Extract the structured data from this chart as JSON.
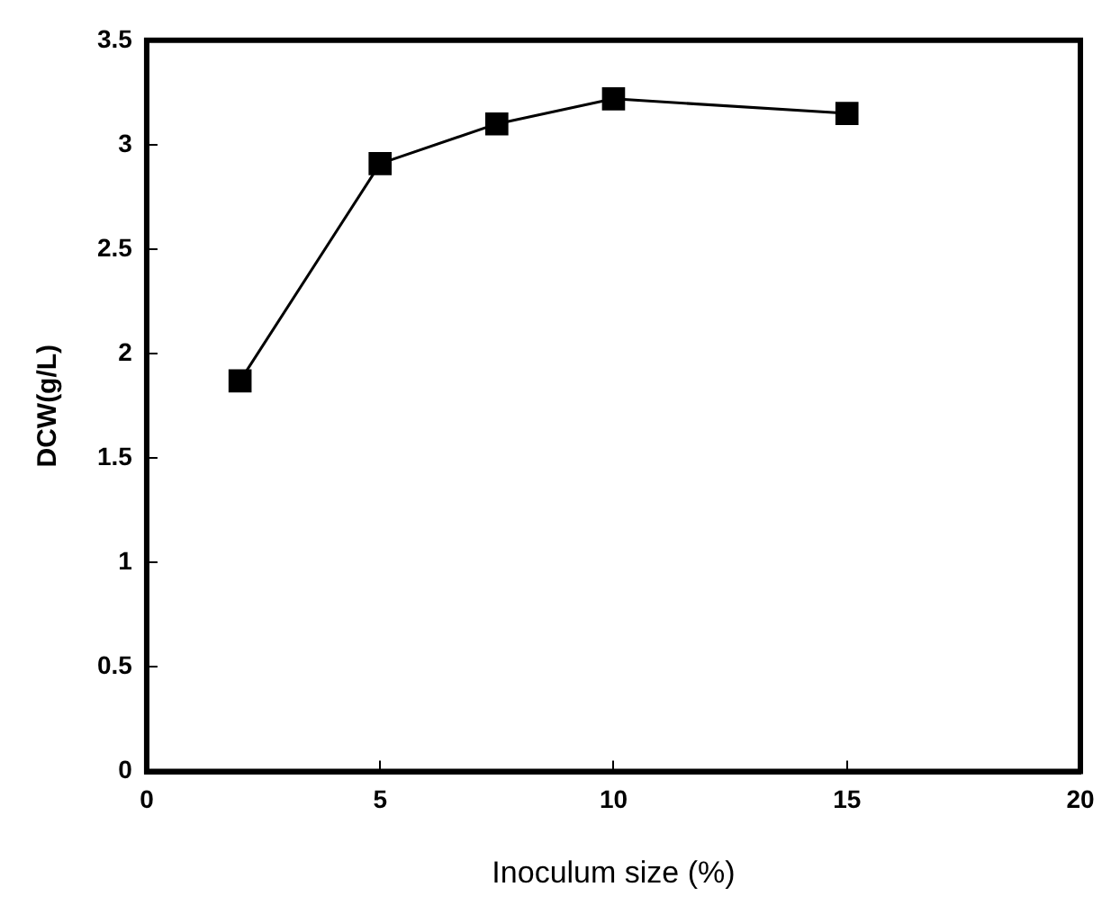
{
  "chart_data": {
    "type": "line",
    "xlabel": "Inoculum size (%)",
    "ylabel": "DCW(g/L)",
    "x": [
      2,
      5,
      7.5,
      10,
      15
    ],
    "series": [
      {
        "color": "#000000",
        "values": [
          1.87,
          2.91,
          3.1,
          3.22,
          3.15
        ]
      }
    ],
    "xlim": [
      0,
      20
    ],
    "xticks": [
      0,
      5,
      10,
      15,
      20
    ],
    "ylim": [
      0,
      3.5
    ],
    "yticks": [
      0,
      0.5,
      1,
      1.5,
      2,
      2.5,
      3,
      3.5
    ],
    "grid": false,
    "legend": false,
    "marker": "square",
    "line_style": "solid"
  }
}
